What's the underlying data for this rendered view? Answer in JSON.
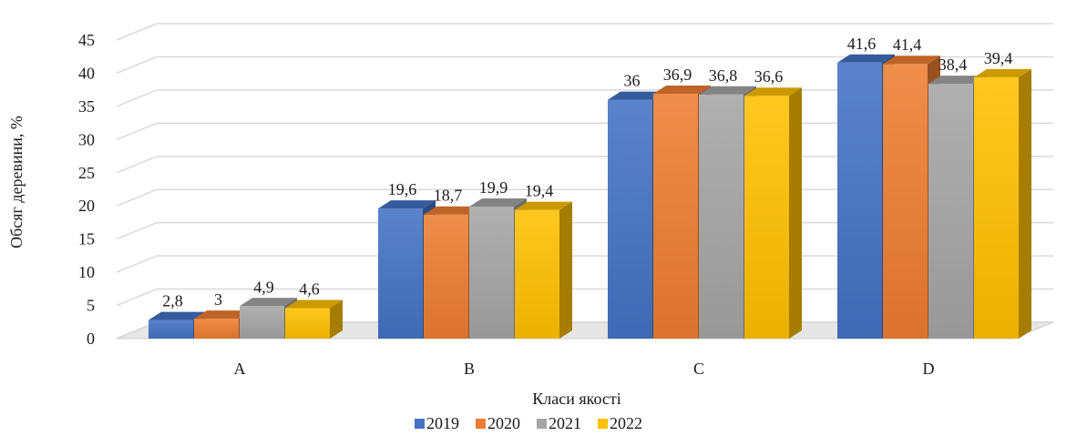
{
  "chart_data": {
    "type": "bar",
    "style": "3d-clustered-column",
    "categories": [
      "A",
      "B",
      "C",
      "D"
    ],
    "series": [
      {
        "name": "2019",
        "color": "#4472C4",
        "values": [
          2.8,
          19.6,
          36,
          41.6
        ],
        "labels": [
          "2,8",
          "19,6",
          "36",
          "41,6"
        ]
      },
      {
        "name": "2020",
        "color": "#ED7D31",
        "values": [
          3,
          18.7,
          36.9,
          41.4
        ],
        "labels": [
          "3",
          "18,7",
          "36,9",
          "41,4"
        ]
      },
      {
        "name": "2021",
        "color": "#A5A5A5",
        "values": [
          4.9,
          19.9,
          36.8,
          38.4
        ],
        "labels": [
          "4,9",
          "19,9",
          "36,8",
          "38,4"
        ]
      },
      {
        "name": "2022",
        "color": "#FFC000",
        "values": [
          4.6,
          19.4,
          36.6,
          39.4
        ],
        "labels": [
          "4,6",
          "19,4",
          "36,6",
          "39,4"
        ]
      }
    ],
    "xlabel": "Класи якості",
    "ylabel": "Обсяг деревини, %",
    "ylim": [
      0,
      45
    ],
    "yticks": [
      0,
      5,
      10,
      15,
      20,
      25,
      30,
      35,
      40,
      45
    ],
    "grid": true,
    "legend": "bottom"
  }
}
